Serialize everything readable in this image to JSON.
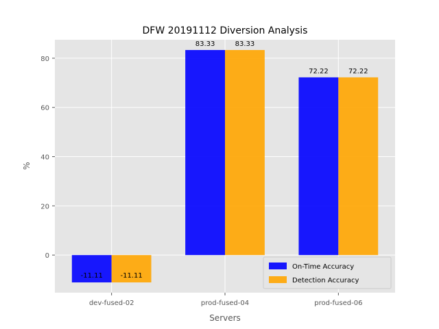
{
  "chart_data": {
    "type": "bar",
    "title": "DFW 20191112 Diversion Analysis",
    "xlabel": "Servers",
    "ylabel": "%",
    "categories": [
      "dev-fused-02",
      "prod-fused-04",
      "prod-fused-06"
    ],
    "series": [
      {
        "name": "On-Time Accuracy",
        "values": [
          -11.11,
          83.33,
          72.22
        ],
        "labels": [
          "-11.11",
          "83.33",
          "72.22"
        ],
        "color": "#0000ff"
      },
      {
        "name": "Detection Accuracy",
        "values": [
          -11.11,
          83.33,
          72.22
        ],
        "labels": [
          "-11.11",
          "83.33",
          "72.22"
        ],
        "color": "#ffa500"
      }
    ],
    "ylim": [
      -15.28,
      87.5
    ],
    "yticks": [
      0,
      20,
      40,
      60,
      80
    ],
    "ytick_labels": [
      "0",
      "20",
      "40",
      "60",
      "80"
    ],
    "grid": true,
    "legend_position": "lower right",
    "style": "ggplot"
  }
}
